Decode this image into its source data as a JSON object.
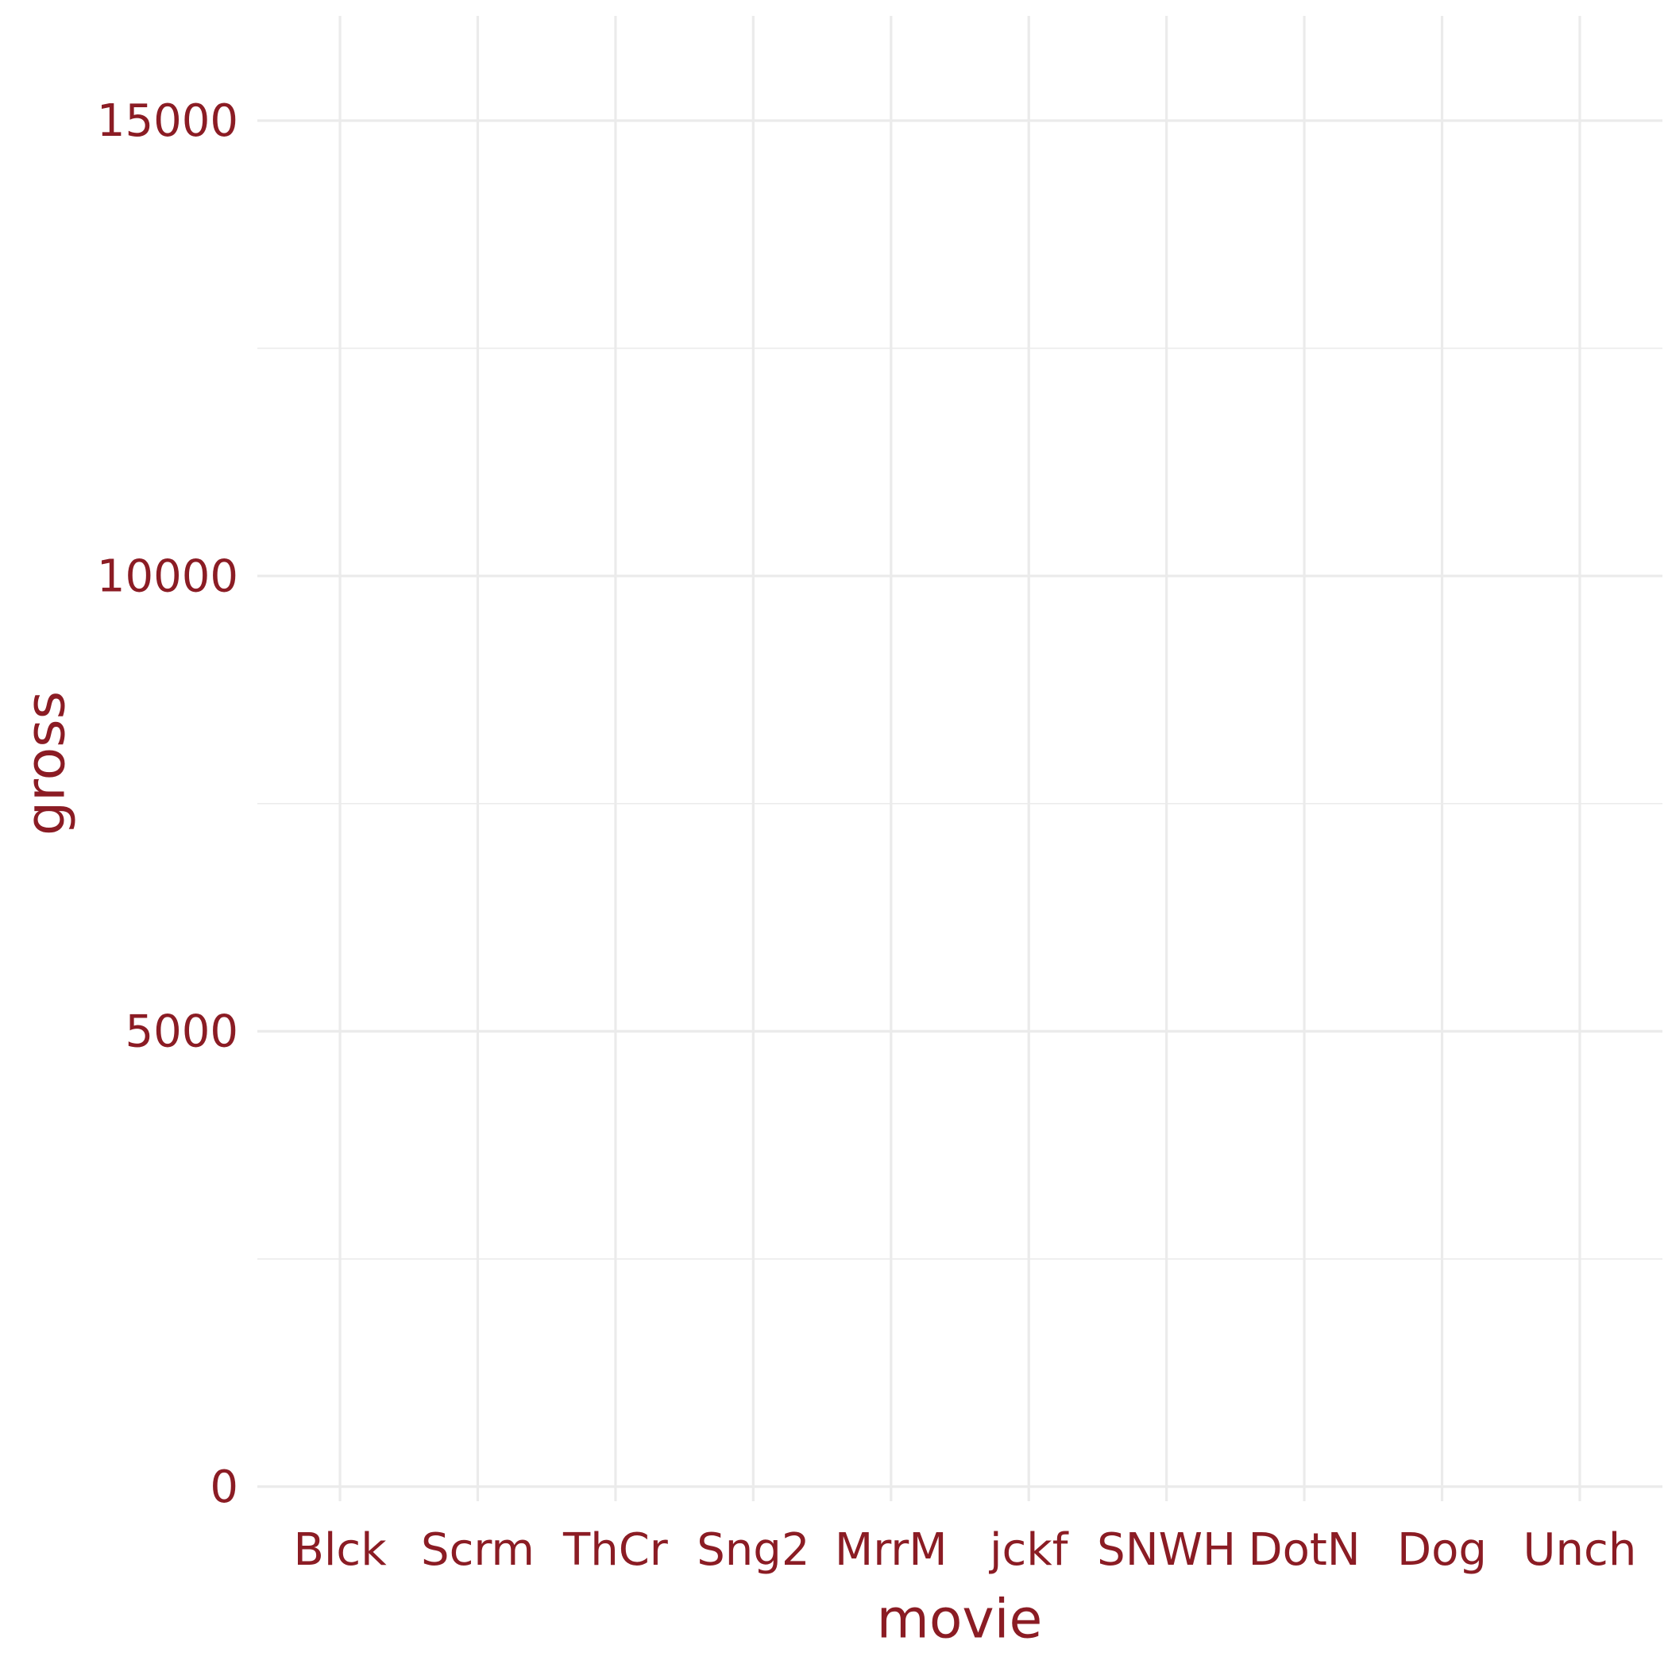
{
  "chart_data": {
    "type": "bar",
    "x_label": "movie",
    "y_label": "gross",
    "categories": [
      "Blck",
      "Scrm",
      "ThCr",
      "Sng2",
      "MrrM",
      "jckf",
      "SNWH",
      "DotN",
      "Dog",
      "Unch"
    ],
    "ylim": [
      -160,
      16150
    ],
    "yticks": [
      0,
      5000,
      10000,
      15000
    ],
    "grid": true,
    "text_color": "#8b1c24",
    "grid_color": "#ebebeb"
  }
}
